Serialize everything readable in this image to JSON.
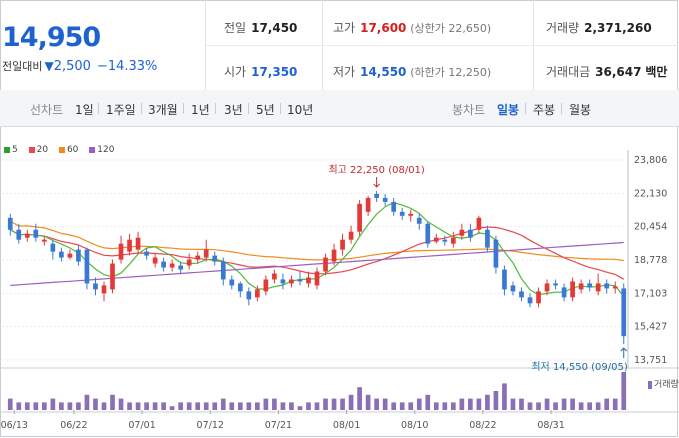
{
  "quote": {
    "price": "14,950",
    "change_label": "전일대비",
    "change_arrow": "▼",
    "change_value": "2,500",
    "change_pct": "−14.33%",
    "prev_close": {
      "label": "전일",
      "value": "17,450"
    },
    "open": {
      "label": "시가",
      "value": "17,350"
    },
    "high": {
      "label": "고가",
      "value": "17,600",
      "limit_text": "(상한가 22,650)"
    },
    "low": {
      "label": "저가",
      "value": "14,550",
      "limit_text": "(하한가 12,250)"
    },
    "volume": {
      "label": "거래량",
      "value": "2,371,260"
    },
    "trade_value": {
      "label": "거래대금",
      "value": "36,647",
      "unit": "백만"
    }
  },
  "toolbar": {
    "line_chart_label": "선차트",
    "periods": [
      "1일",
      "1주일",
      "3개월",
      "1년",
      "3년",
      "5년",
      "10년"
    ],
    "candle_chart_label": "봉차트",
    "candle_periods": [
      "일봉",
      "주봉",
      "월봉"
    ],
    "candle_selected": "일봉"
  },
  "legend": [
    {
      "label": "5",
      "color": "#2ca02c"
    },
    {
      "label": "20",
      "color": "#e8474f"
    },
    {
      "label": "60",
      "color": "#f08c1c"
    },
    {
      "label": "120",
      "color": "#9b5fc0"
    }
  ],
  "colors": {
    "up": "#e23a3a",
    "down": "#3a78d4",
    "ma5": "#52b93a",
    "ma20": "#e8474f",
    "ma60": "#f08c1c",
    "ma120": "#9b5fc0"
  },
  "volume_label": "거래량",
  "chart_data": {
    "type": "candlestick",
    "y_ticks": [
      23806,
      22130,
      20454,
      18778,
      17103,
      15427,
      13751
    ],
    "ylim": [
      13751,
      23806
    ],
    "x_ticks": [
      "06/13",
      "06/22",
      "07/01",
      "07/12",
      "07/21",
      "08/01",
      "08/10",
      "08/22",
      "08/31"
    ],
    "high_annotation": "최고 22,250 (08/01)",
    "low_annotation": "최저 14,550 (09/05)",
    "candles": [
      {
        "o": 20900,
        "c": 20300,
        "h": 21100,
        "l": 20000
      },
      {
        "o": 20300,
        "c": 19800,
        "h": 20600,
        "l": 19600
      },
      {
        "o": 19900,
        "c": 20100,
        "h": 20300,
        "l": 19700
      },
      {
        "o": 20300,
        "c": 19900,
        "h": 20600,
        "l": 19700
      },
      {
        "o": 19700,
        "c": 19800,
        "h": 20000,
        "l": 19500
      },
      {
        "o": 19600,
        "c": 19200,
        "h": 19800,
        "l": 18800
      },
      {
        "o": 19200,
        "c": 18900,
        "h": 19400,
        "l": 18700
      },
      {
        "o": 18900,
        "c": 19100,
        "h": 19300,
        "l": 18800
      },
      {
        "o": 19300,
        "c": 18700,
        "h": 19500,
        "l": 18500
      },
      {
        "o": 19300,
        "c": 17600,
        "h": 19400,
        "l": 17300
      },
      {
        "o": 17600,
        "c": 17300,
        "h": 17900,
        "l": 17000
      },
      {
        "o": 17100,
        "c": 17500,
        "h": 17700,
        "l": 16700
      },
      {
        "o": 17300,
        "c": 18600,
        "h": 18800,
        "l": 17100
      },
      {
        "o": 18800,
        "c": 19600,
        "h": 20000,
        "l": 18600
      },
      {
        "o": 19200,
        "c": 19800,
        "h": 20100,
        "l": 19000
      },
      {
        "o": 19300,
        "c": 19900,
        "h": 20200,
        "l": 19100
      },
      {
        "o": 19200,
        "c": 19000,
        "h": 19400,
        "l": 18800
      },
      {
        "o": 18600,
        "c": 18900,
        "h": 19100,
        "l": 18400
      },
      {
        "o": 18700,
        "c": 18400,
        "h": 18900,
        "l": 18200
      },
      {
        "o": 18400,
        "c": 18600,
        "h": 18800,
        "l": 18200
      },
      {
        "o": 18500,
        "c": 18300,
        "h": 18700,
        "l": 18100
      },
      {
        "o": 18500,
        "c": 18800,
        "h": 19100,
        "l": 18300
      },
      {
        "o": 18800,
        "c": 19000,
        "h": 19200,
        "l": 18600
      },
      {
        "o": 18900,
        "c": 19300,
        "h": 19800,
        "l": 18700
      },
      {
        "o": 19000,
        "c": 18700,
        "h": 19200,
        "l": 18500
      },
      {
        "o": 18700,
        "c": 17800,
        "h": 18900,
        "l": 17500
      },
      {
        "o": 17800,
        "c": 17500,
        "h": 18000,
        "l": 17300
      },
      {
        "o": 17600,
        "c": 17200,
        "h": 17700,
        "l": 16900
      },
      {
        "o": 17200,
        "c": 16800,
        "h": 17400,
        "l": 16500
      },
      {
        "o": 16900,
        "c": 17300,
        "h": 17500,
        "l": 16700
      },
      {
        "o": 17200,
        "c": 17800,
        "h": 18000,
        "l": 17000
      },
      {
        "o": 17800,
        "c": 18100,
        "h": 18300,
        "l": 17600
      },
      {
        "o": 17800,
        "c": 17600,
        "h": 18100,
        "l": 17300
      },
      {
        "o": 17600,
        "c": 17800,
        "h": 18000,
        "l": 17400
      },
      {
        "o": 17800,
        "c": 17700,
        "h": 18200,
        "l": 17500
      },
      {
        "o": 17600,
        "c": 17900,
        "h": 18200,
        "l": 17400
      },
      {
        "o": 17500,
        "c": 18200,
        "h": 18400,
        "l": 17300
      },
      {
        "o": 18200,
        "c": 18900,
        "h": 19100,
        "l": 18000
      },
      {
        "o": 18700,
        "c": 19300,
        "h": 19600,
        "l": 18500
      },
      {
        "o": 19300,
        "c": 19800,
        "h": 20100,
        "l": 19000
      },
      {
        "o": 19800,
        "c": 20200,
        "h": 20500,
        "l": 19600
      },
      {
        "o": 20200,
        "c": 21600,
        "h": 21800,
        "l": 20000
      },
      {
        "o": 21200,
        "c": 21900,
        "h": 22000,
        "l": 21000
      },
      {
        "o": 22100,
        "c": 21900,
        "h": 22250,
        "l": 21700
      },
      {
        "o": 21900,
        "c": 21700,
        "h": 22100,
        "l": 21500
      },
      {
        "o": 21700,
        "c": 21200,
        "h": 21900,
        "l": 21000
      },
      {
        "o": 21200,
        "c": 21000,
        "h": 21400,
        "l": 20800
      },
      {
        "o": 21000,
        "c": 21100,
        "h": 21300,
        "l": 20700
      },
      {
        "o": 20900,
        "c": 20600,
        "h": 21100,
        "l": 20300
      },
      {
        "o": 20600,
        "c": 19600,
        "h": 20700,
        "l": 19400
      },
      {
        "o": 19700,
        "c": 19900,
        "h": 20100,
        "l": 19600
      },
      {
        "o": 19800,
        "c": 19700,
        "h": 20000,
        "l": 19500
      },
      {
        "o": 19600,
        "c": 19900,
        "h": 20200,
        "l": 19400
      },
      {
        "o": 20000,
        "c": 20300,
        "h": 20600,
        "l": 19800
      },
      {
        "o": 20300,
        "c": 19900,
        "h": 20600,
        "l": 19700
      },
      {
        "o": 20300,
        "c": 20900,
        "h": 21000,
        "l": 20100
      },
      {
        "o": 20300,
        "c": 19400,
        "h": 20500,
        "l": 19200
      },
      {
        "o": 19800,
        "c": 18400,
        "h": 20000,
        "l": 18100
      },
      {
        "o": 18300,
        "c": 17300,
        "h": 18500,
        "l": 17000
      },
      {
        "o": 17500,
        "c": 17200,
        "h": 17700,
        "l": 17000
      },
      {
        "o": 17200,
        "c": 16900,
        "h": 17400,
        "l": 16700
      },
      {
        "o": 16900,
        "c": 16600,
        "h": 17100,
        "l": 16400
      },
      {
        "o": 16600,
        "c": 17200,
        "h": 17400,
        "l": 16400
      },
      {
        "o": 17200,
        "c": 17600,
        "h": 17800,
        "l": 17000
      },
      {
        "o": 17600,
        "c": 17500,
        "h": 17800,
        "l": 17300
      },
      {
        "o": 17400,
        "c": 16900,
        "h": 17600,
        "l": 16700
      },
      {
        "o": 16900,
        "c": 17700,
        "h": 17900,
        "l": 16700
      },
      {
        "o": 17300,
        "c": 17600,
        "h": 17800,
        "l": 17100
      },
      {
        "o": 17600,
        "c": 17400,
        "h": 17800,
        "l": 17200
      },
      {
        "o": 17200,
        "c": 17600,
        "h": 18100,
        "l": 17000
      },
      {
        "o": 17600,
        "c": 17350,
        "h": 17800,
        "l": 17100
      },
      {
        "o": 17350,
        "c": 17450,
        "h": 17700,
        "l": 17100
      },
      {
        "o": 17350,
        "c": 14950,
        "h": 17600,
        "l": 14550
      }
    ],
    "volume": [
      3,
      2,
      2,
      2,
      2,
      3,
      2,
      2,
      2,
      4,
      3,
      2,
      4,
      3,
      2,
      2,
      2,
      2,
      2,
      1,
      2,
      2,
      2,
      2,
      2,
      3,
      2,
      2,
      2,
      2,
      3,
      3,
      2,
      2,
      1,
      2,
      2,
      3,
      3,
      3,
      4,
      6,
      4,
      3,
      3,
      2,
      2,
      2,
      3,
      4,
      2,
      2,
      2,
      3,
      3,
      3,
      4,
      5,
      7,
      3,
      3,
      2,
      2,
      3,
      2,
      3,
      3,
      2,
      2,
      2,
      3,
      3,
      10
    ]
  }
}
